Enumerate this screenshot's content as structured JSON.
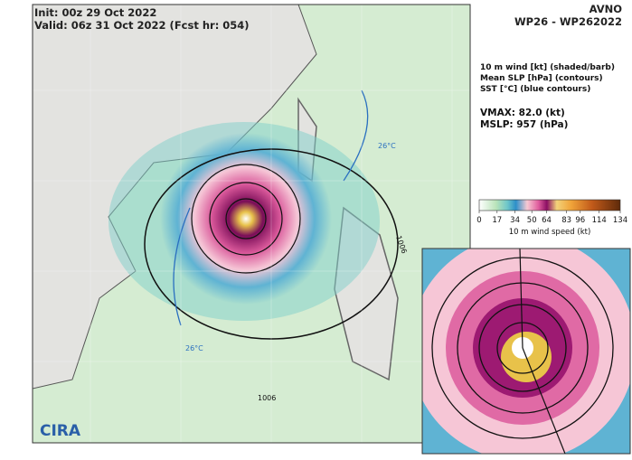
{
  "header": {
    "init": "Init:  00z 29 Oct 2022",
    "valid": "Valid: 06z 31 Oct 2022 (Fcst hr: 054)",
    "model": "AVNO",
    "storm": "WP26 - WP262022"
  },
  "legend": {
    "lines": [
      "10 m wind [kt] (shaded/barb)",
      "Mean SLP [hPa] (contours)",
      "SST [°C] (blue contours)"
    ]
  },
  "stats": {
    "vmax": "VMAX:  82.0 (kt)",
    "mslp": "MSLP:  957 (hPa)"
  },
  "colorbar": {
    "ticks": [
      0,
      17,
      34,
      50,
      64,
      83,
      96,
      114,
      134
    ],
    "label": "10 m wind speed (kt)"
  },
  "map": {
    "contour_labels": [
      "26°C",
      "1006",
      "26°C",
      "1006"
    ],
    "logo": "CIRA"
  }
}
